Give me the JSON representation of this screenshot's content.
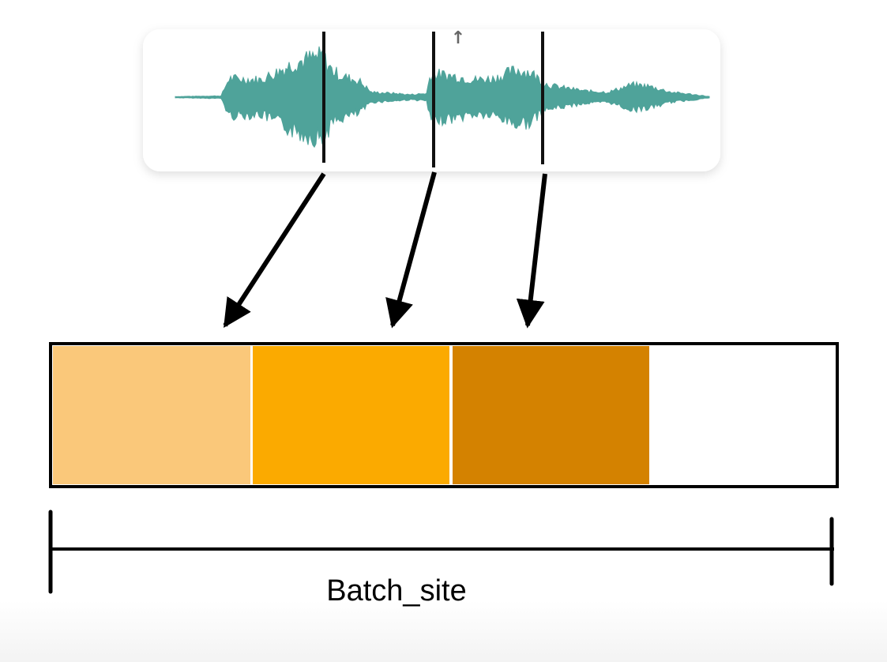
{
  "colors": {
    "waveform": "#4fa39a",
    "marker": "#111111",
    "segment_1": "#fac87a",
    "segment_2": "#fbaa00",
    "segment_3": "#d48200",
    "segment_empty": "#ffffff",
    "outline": "#000000"
  },
  "waveform": {
    "icon": "audio-waveform",
    "marker_count": 3
  },
  "batch": {
    "segments_filled": 3,
    "segments_total": 4
  },
  "dimension_label": "Batch_site",
  "playhead_glyph": "↑"
}
